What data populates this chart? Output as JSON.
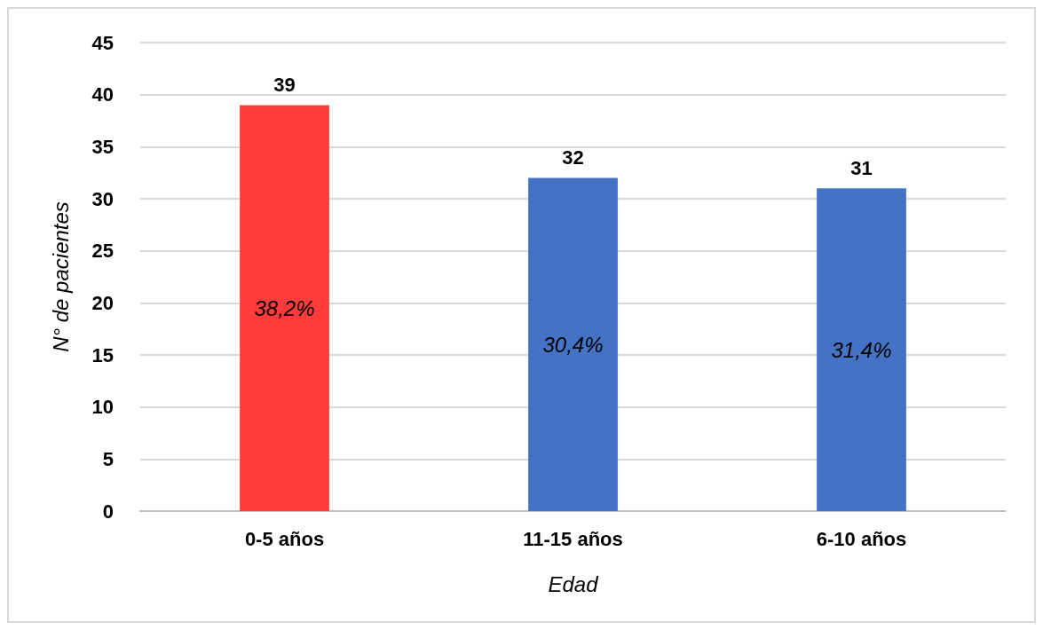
{
  "chart_data": {
    "type": "bar",
    "xlabel": "Edad",
    "ylabel": "N° de pacientes",
    "categories": [
      "0-5 años",
      "11-15 años",
      "6-10 años"
    ],
    "values": [
      39,
      32,
      31
    ],
    "colors": [
      "#ff3b3b",
      "#4472c4",
      "#4472c4"
    ],
    "ylim": [
      0,
      45
    ],
    "yticks": [
      0,
      5,
      10,
      15,
      20,
      25,
      30,
      35,
      40,
      45
    ],
    "grid": "y",
    "data_labels": true,
    "annotations": [
      "38,2%",
      "30,4%",
      "31,4%"
    ]
  }
}
